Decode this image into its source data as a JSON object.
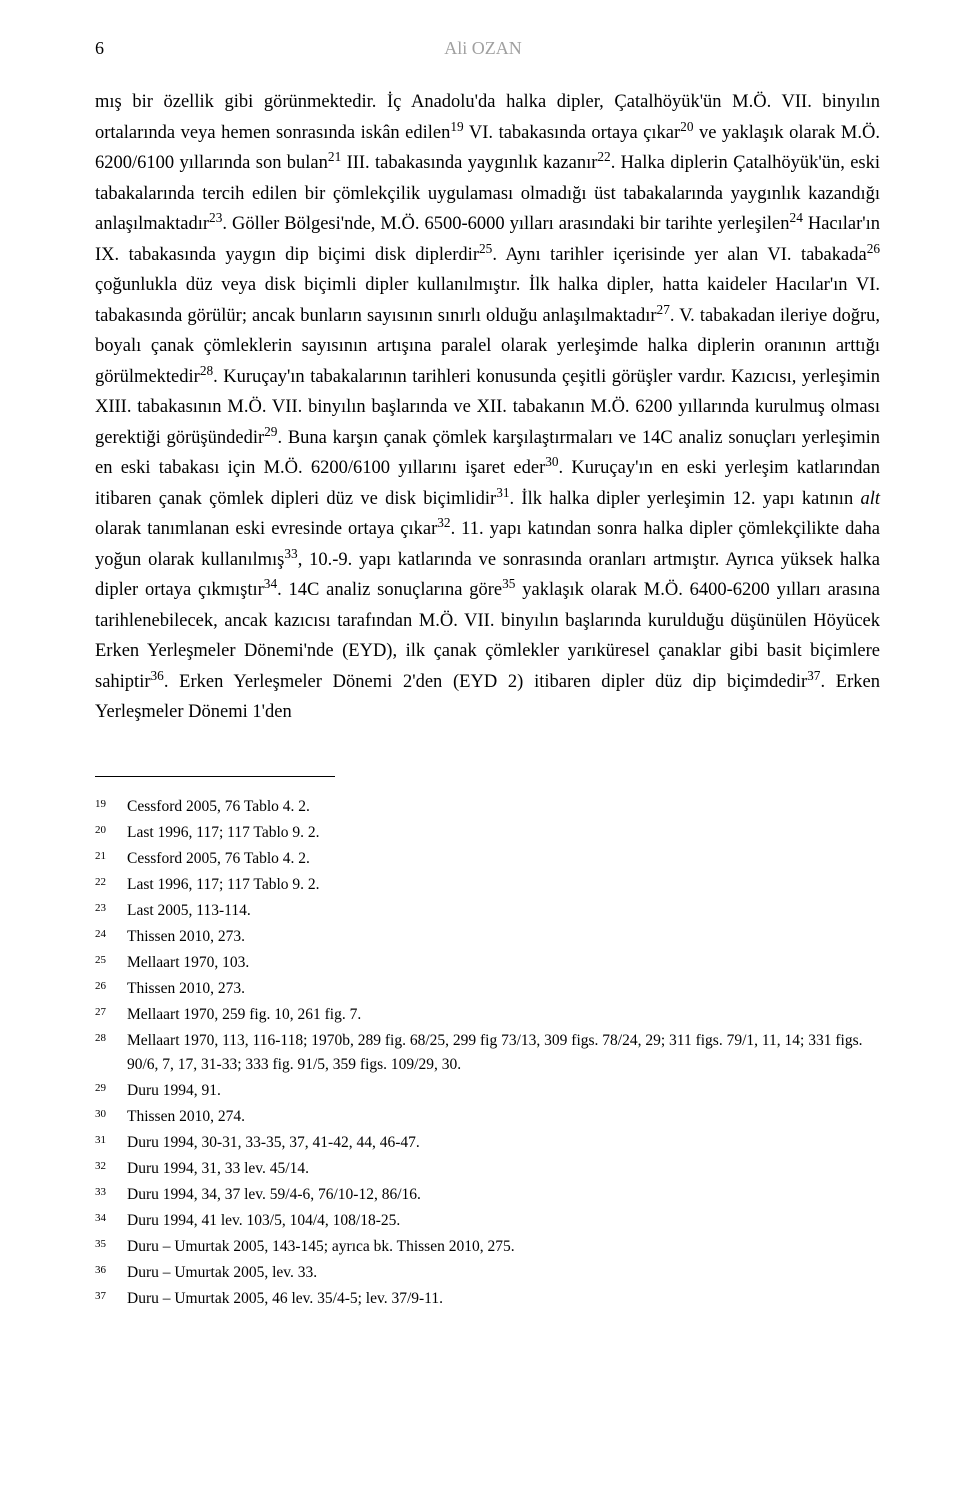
{
  "header": {
    "page_number": "6",
    "author": "Ali OZAN"
  },
  "body": {
    "paragraph": "mış bir özellik gibi görünmektedir. İç Anadolu'da halka dipler, Çatalhöyük'ün M.Ö. VII. binyılın ortalarında veya hemen sonrasında iskân edilen¹⁹ VI. tabakasında ortaya çıkar²⁰ ve yaklaşık olarak M.Ö. 6200/6100 yıllarında son bulan²¹ III. tabakasında yaygınlık kazanır²². Halka diplerin Çatalhöyük'ün, eski tabakalarında tercih edilen bir çömlekçilik uygulaması olmadığı üst tabakalarında yaygınlık kazandığı anlaşılmaktadır²³. Göller Bölgesi'nde, M.Ö. 6500-6000 yılları arasındaki bir tarihte yerleşilen²⁴ Hacılar'ın IX. tabakasında yaygın dip biçimi disk diplerdir²⁵. Aynı tarihler içerisinde yer alan VI. tabakada²⁶ çoğunlukla düz veya disk biçimli dipler kullanılmıştır. İlk halka dipler, hatta kaideler Hacılar'ın VI. tabakasında görülür; ancak bunların sayısının sınırlı olduğu anlaşılmaktadır²⁷. V. tabakadan ileriye doğru, boyalı çanak çömleklerin sayısının artışına paralel olarak yerleşimde halka diplerin oranının arttığı görülmektedir²⁸. Kuruçay'ın tabakalarının tarihleri konusunda çeşitli görüşler vardır. Kazıcısı, yerleşimin XIII. tabakasının M.Ö. VII. binyılın başlarında ve XII. tabakanın M.Ö. 6200 yıllarında kurulmuş olması gerektiği görüşündedir²⁹. Buna karşın çanak çömlek karşılaştırmaları ve 14C analiz sonuçları yerleşimin en eski tabakası için M.Ö. 6200/6100 yıllarını işaret eder³⁰. Kuruçay'ın en eski yerleşim katlarından itibaren çanak çömlek dipleri düz ve disk biçimlidir³¹. İlk halka dipler yerleşimin 12. yapı katının ",
    "alt_word": "alt",
    "paragraph_cont": " olarak tanımlanan eski evresinde ortaya çıkar³². 11. yapı katından sonra halka dipler çömlekçilikte daha yoğun olarak kullanılmış³³, 10.-9. yapı katlarında ve sonrasında oranları artmıştır. Ayrıca yüksek halka dipler ortaya çıkmıştır³⁴. 14C analiz sonuçlarına göre³⁵ yaklaşık olarak M.Ö. 6400-6200 yılları arasına tarihlenebilecek, ancak kazıcısı tarafından M.Ö. VII. binyılın başlarında kurulduğu düşünülen Höyücek Erken Yerleşmeler Dönemi'nde (EYD), ilk çanak çömlekler yarıküresel çanaklar gibi basit biçimlere sahiptir³⁶. Erken Yerleşmeler Dönemi 2'den (EYD 2) itibaren dipler düz dip biçimdedir³⁷. Erken Yerleşmeler Dönemi 1'den"
  },
  "footnotes": [
    {
      "num": "19",
      "text": "Cessford 2005, 76 Tablo 4. 2."
    },
    {
      "num": "20",
      "text": "Last 1996, 117; 117 Tablo 9. 2."
    },
    {
      "num": "21",
      "text": "Cessford 2005, 76 Tablo 4. 2."
    },
    {
      "num": "22",
      "text": "Last 1996, 117; 117 Tablo 9. 2."
    },
    {
      "num": "23",
      "text": "Last 2005, 113-114."
    },
    {
      "num": "24",
      "text": "Thissen 2010, 273."
    },
    {
      "num": "25",
      "text": "Mellaart 1970, 103."
    },
    {
      "num": "26",
      "text": "Thissen 2010, 273."
    },
    {
      "num": "27",
      "text": "Mellaart 1970, 259 fig. 10, 261 fig. 7."
    },
    {
      "num": "28",
      "text": "Mellaart 1970, 113, 116-118; 1970b, 289 fig. 68/25, 299 fig 73/13, 309 figs. 78/24, 29; 311 figs. 79/1, 11, 14; 331 figs. 90/6, 7, 17, 31-33; 333 fig. 91/5, 359 figs. 109/29, 30."
    },
    {
      "num": "29",
      "text": "Duru 1994, 91."
    },
    {
      "num": "30",
      "text": "Thissen 2010, 274."
    },
    {
      "num": "31",
      "text": "Duru 1994, 30-31, 33-35, 37, 41-42, 44, 46-47."
    },
    {
      "num": "32",
      "text": "Duru 1994, 31, 33 lev. 45/14."
    },
    {
      "num": "33",
      "text": "Duru 1994, 34, 37 lev. 59/4-6, 76/10-12, 86/16."
    },
    {
      "num": "34",
      "text": "Duru 1994, 41 lev. 103/5, 104/4, 108/18-25."
    },
    {
      "num": "35",
      "text": "Duru – Umurtak 2005, 143-145; ayrıca bk. Thissen 2010, 275."
    },
    {
      "num": "36",
      "text": "Duru – Umurtak 2005, lev. 33."
    },
    {
      "num": "37",
      "text": "Duru – Umurtak 2005, 46 lev. 35/4-5; lev. 37/9-11."
    }
  ]
}
